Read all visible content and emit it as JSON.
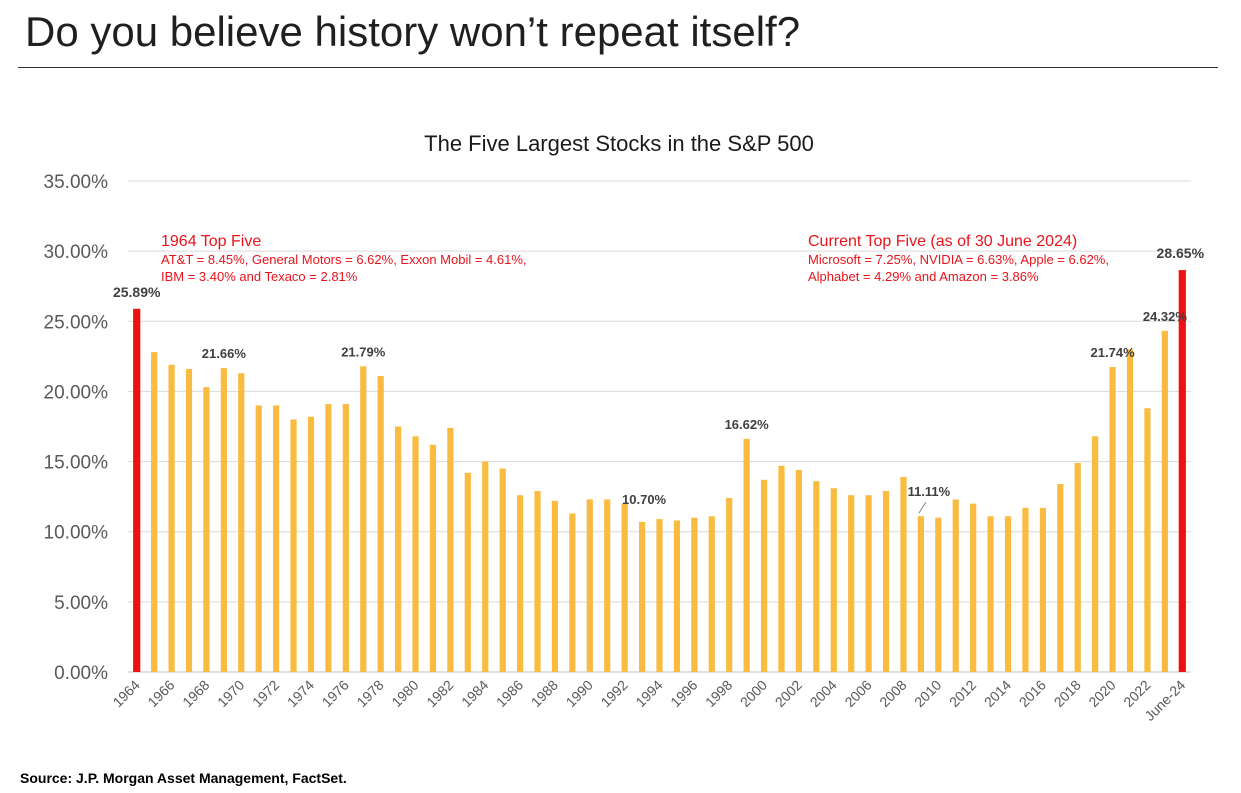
{
  "page": {
    "title": "Do you believe history won’t repeat itself?",
    "source": "Source: J.P. Morgan Asset Management, FactSet."
  },
  "colors": {
    "bar": "#F9BB40",
    "highlight": "#EE1111",
    "annotation_text": "#E8141B",
    "grid": "#D9D9D9",
    "axis_text": "#595959"
  },
  "chart_data": {
    "type": "bar",
    "title": "The Five Largest Stocks in the S&P 500",
    "xlabel": "",
    "ylabel": "",
    "ylim": [
      0,
      35
    ],
    "grid": true,
    "y_ticks": [
      "0.00%",
      "5.00%",
      "10.00%",
      "15.00%",
      "20.00%",
      "25.00%",
      "30.00%",
      "35.00%"
    ],
    "categories": [
      "1964",
      "1965",
      "1966",
      "1967",
      "1968",
      "1969",
      "1970",
      "1971",
      "1972",
      "1973",
      "1974",
      "1975",
      "1976",
      "1977",
      "1978",
      "1979",
      "1980",
      "1981",
      "1982",
      "1983",
      "1984",
      "1985",
      "1986",
      "1987",
      "1988",
      "1989",
      "1990",
      "1991",
      "1992",
      "1993",
      "1994",
      "1995",
      "1996",
      "1997",
      "1998",
      "1999",
      "2000",
      "2001",
      "2002",
      "2003",
      "2004",
      "2005",
      "2006",
      "2007",
      "2008",
      "2009",
      "2010",
      "2011",
      "2012",
      "2013",
      "2014",
      "2015",
      "2016",
      "2017",
      "2018",
      "2019",
      "2020",
      "2021",
      "2022",
      "2023",
      "June-24"
    ],
    "x_tick_labels": [
      "1964",
      "1966",
      "1968",
      "1970",
      "1972",
      "1974",
      "1976",
      "1978",
      "1980",
      "1982",
      "1984",
      "1986",
      "1988",
      "1990",
      "1992",
      "1994",
      "1996",
      "1998",
      "2000",
      "2002",
      "2004",
      "2006",
      "2008",
      "2010",
      "2012",
      "2014",
      "2016",
      "2018",
      "2020",
      "2022",
      "June-24"
    ],
    "values": [
      25.89,
      22.8,
      21.9,
      21.6,
      20.3,
      21.66,
      21.3,
      19.0,
      19.0,
      18.0,
      18.2,
      19.1,
      19.1,
      21.79,
      21.1,
      17.5,
      16.8,
      16.2,
      17.4,
      14.2,
      15.0,
      14.5,
      12.6,
      12.9,
      12.2,
      11.3,
      12.3,
      12.3,
      12.0,
      10.7,
      10.9,
      10.8,
      11.0,
      11.1,
      12.4,
      16.62,
      13.7,
      14.7,
      14.4,
      13.6,
      13.1,
      12.6,
      12.6,
      12.9,
      13.9,
      11.11,
      11.0,
      12.3,
      12.0,
      11.1,
      11.1,
      11.7,
      11.7,
      13.4,
      14.9,
      16.8,
      21.74,
      23.0,
      18.8,
      24.32,
      28.65
    ],
    "highlight_categories": [
      "1964",
      "June-24"
    ],
    "data_labels": [
      {
        "category": "1964",
        "text": "25.89%"
      },
      {
        "category": "1969",
        "text": "21.66%"
      },
      {
        "category": "1977",
        "text": "21.79%"
      },
      {
        "category": "1993",
        "text": "10.70%"
      },
      {
        "category": "1999",
        "text": "16.62%"
      },
      {
        "category": "2009",
        "text": "11.11%"
      },
      {
        "category": "2020",
        "text": "21.74%"
      },
      {
        "category": "2023",
        "text": "24.32%"
      },
      {
        "category": "June-24",
        "text": "28.65%"
      }
    ],
    "annotations": [
      {
        "title": "1964 Top Five",
        "lines": [
          "AT&T = 8.45%, General Motors = 6.62%, Exxon Mobil = 4.61%,",
          "IBM = 3.40% and Texaco = 2.81%"
        ]
      },
      {
        "title": "Current Top Five (as of 30 June 2024)",
        "lines": [
          "Microsoft = 7.25%, NVIDIA = 6.63%, Apple = 6.62%,",
          "Alphabet = 4.29% and Amazon = 3.86%"
        ]
      }
    ]
  }
}
